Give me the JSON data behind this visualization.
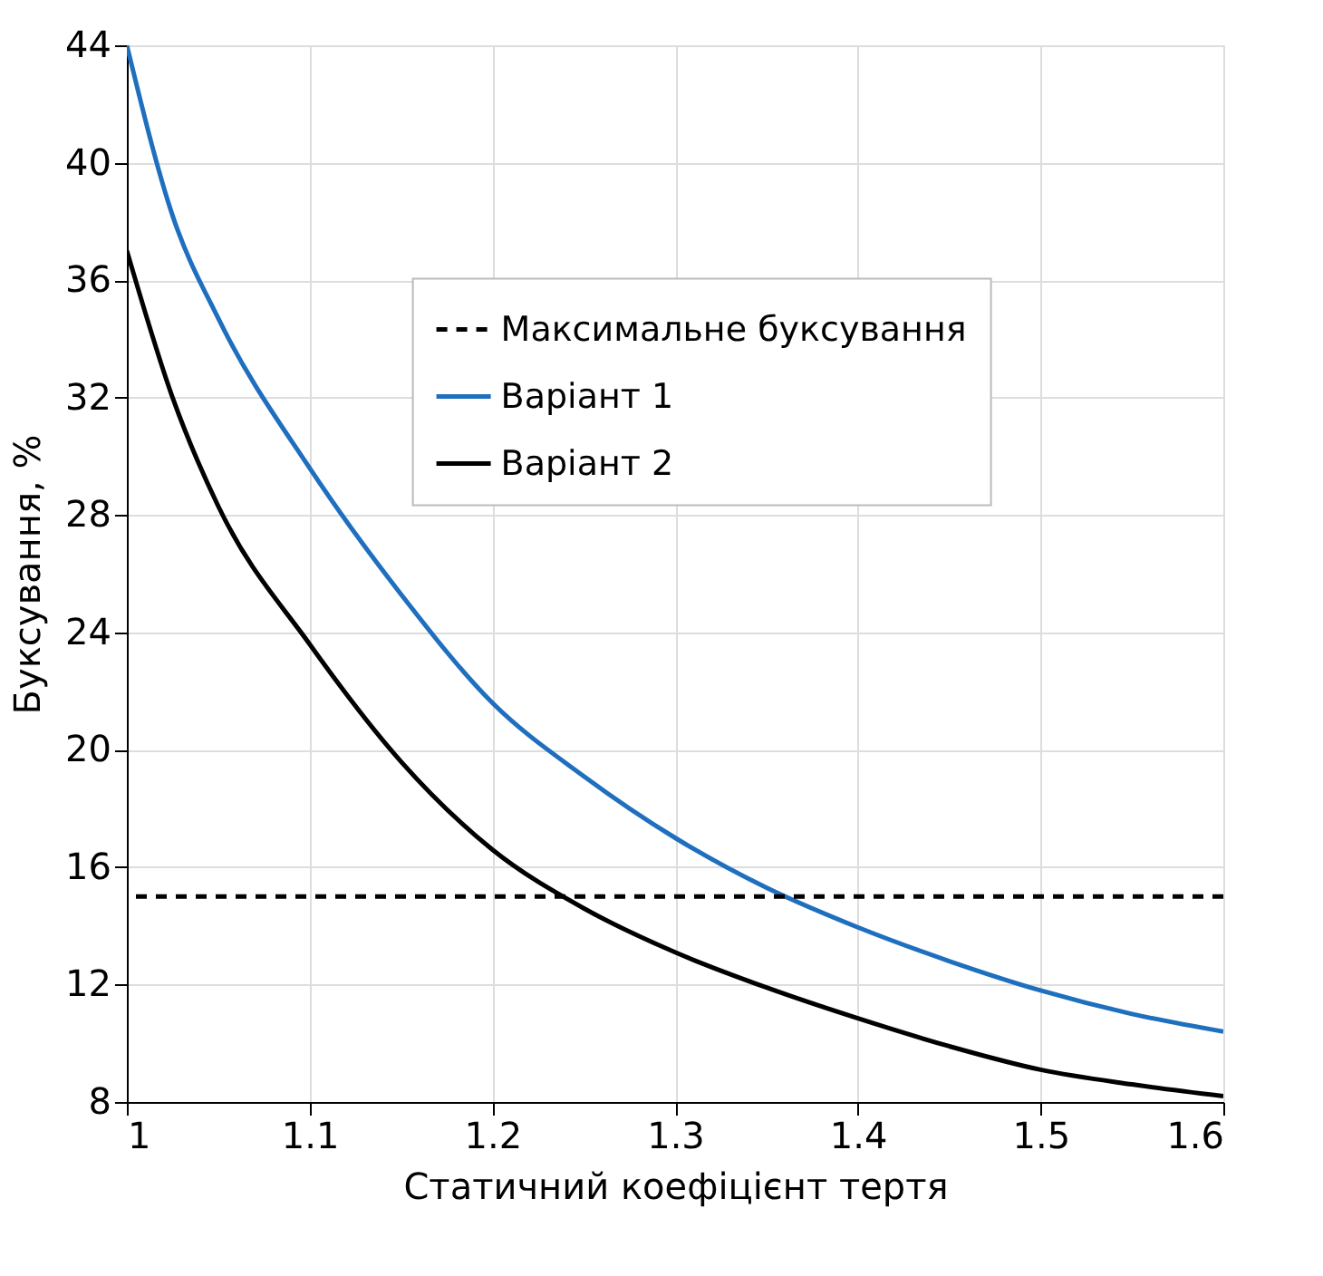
{
  "chart_data": {
    "type": "line",
    "xlabel": "Статичний коефіцієнт тертя",
    "ylabel": "Буксування, %",
    "x": [
      1.0,
      1.025,
      1.05,
      1.1,
      1.15,
      1.2,
      1.25,
      1.3,
      1.35,
      1.4,
      1.45,
      1.5,
      1.55,
      1.6
    ],
    "series": [
      {
        "name": "Варіант 1",
        "color": "#1f6fbf",
        "values": [
          44.0,
          38.2,
          34.7,
          29.6,
          25.3,
          21.6,
          19.1,
          17.0,
          15.3,
          13.95,
          12.8,
          11.8,
          11.0,
          10.4
        ]
      },
      {
        "name": "Варіант 2",
        "color": "#000000",
        "values": [
          37.0,
          32.0,
          28.3,
          23.6,
          19.6,
          16.6,
          14.6,
          13.1,
          11.9,
          10.85,
          9.9,
          9.1,
          8.6,
          8.2
        ]
      }
    ],
    "ref_lines": [
      {
        "axis": "y",
        "value": 15,
        "label": "Максимальне буксування",
        "color": "#000000",
        "line_style": "dashed"
      }
    ],
    "xlim": [
      1.0,
      1.6
    ],
    "xticks": [
      1,
      1.1,
      1.2,
      1.3,
      1.4,
      1.5,
      1.6
    ],
    "ylim": [
      8,
      44
    ],
    "yticks": [
      8,
      12,
      16,
      20,
      24,
      28,
      32,
      36,
      40,
      44
    ],
    "grid": true,
    "legend": "top right",
    "line_style": "solid",
    "marker": "none"
  }
}
